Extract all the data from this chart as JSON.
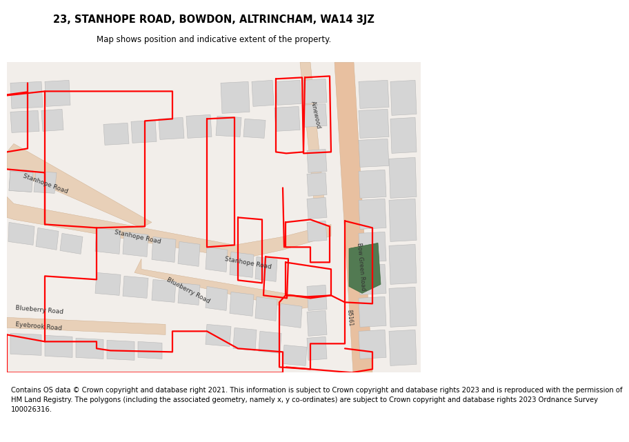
{
  "title": "23, STANHOPE ROAD, BOWDON, ALTRINCHAM, WA14 3JZ",
  "subtitle": "Map shows position and indicative extent of the property.",
  "title_fontsize": 10.5,
  "subtitle_fontsize": 8.5,
  "footer_text": "Contains OS data © Crown copyright and database right 2021. This information is subject to Crown copyright and database rights 2023 and is reproduced with the permission of\nHM Land Registry. The polygons (including the associated geometry, namely x, y co-ordinates) are subject to Crown copyright and database rights 2023 Ordnance Survey\n100026316.",
  "footer_fontsize": 7.2,
  "bg_color": "#ffffff",
  "map_bg": "#f2eeea",
  "road_color": "#e8d0b8",
  "bow_road_color": "#e8b898",
  "green_color": "#527a52",
  "building_fill": "#d5d5d5",
  "building_edge": "#b8b8b8",
  "red_color": "#ff0000",
  "label_color": "#333333",
  "label_size": 6.5
}
